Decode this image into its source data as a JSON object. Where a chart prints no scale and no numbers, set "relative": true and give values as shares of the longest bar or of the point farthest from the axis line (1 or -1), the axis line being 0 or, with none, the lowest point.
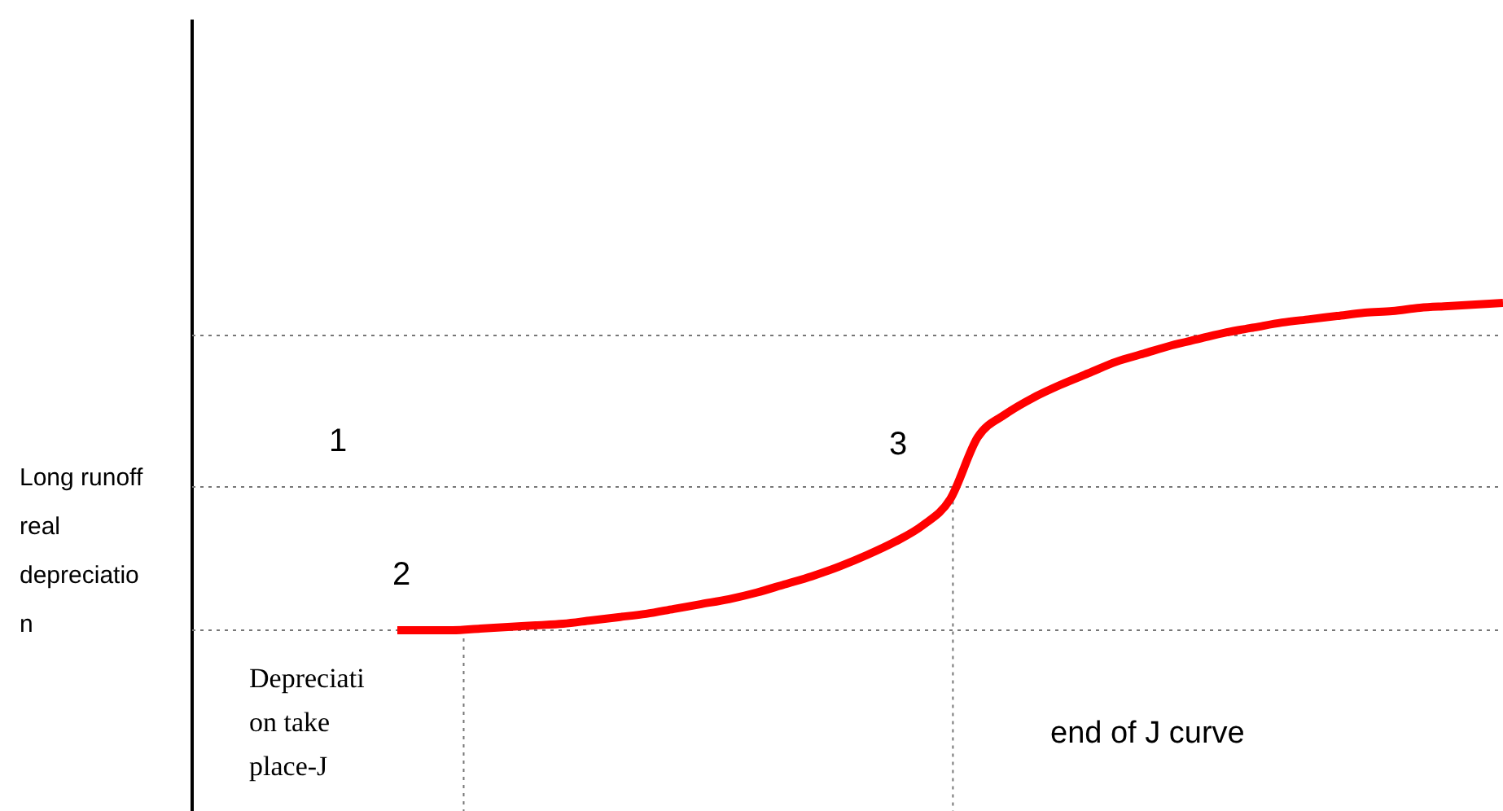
{
  "chart_data": {
    "type": "line",
    "relative": true,
    "categories": [
      null,
      null,
      null,
      null,
      null,
      null,
      null,
      null,
      null,
      null,
      null,
      null,
      null,
      null,
      null,
      null,
      null,
      null,
      null,
      null,
      null,
      null,
      null,
      null,
      null,
      null,
      null,
      null,
      null,
      null,
      null,
      null,
      null,
      null,
      null,
      null,
      null,
      null,
      null,
      null,
      null
    ],
    "series": [
      {
        "color": "#ff0000",
        "values": [
          0,
          0,
          0,
          0.005,
          0.01,
          0.015,
          0.02,
          0.03,
          0.04,
          0.05,
          0.065,
          0.08,
          0.095,
          0.115,
          0.14,
          0.165,
          0.195,
          0.23,
          0.27,
          0.32,
          0.4,
          0.59,
          0.66,
          0.71,
          0.75,
          0.785,
          0.82,
          0.845,
          0.87,
          0.89,
          0.91,
          0.925,
          0.94,
          0.95,
          0.96,
          0.97,
          0.975,
          0.985,
          0.99,
          0.995,
          1
        ]
      }
    ],
    "annotations": [
      "Long runoff real depreciation",
      "1",
      "2",
      "3",
      "Depreciation take place-J",
      "end of J curve"
    ],
    "line_style": "solid"
  }
}
